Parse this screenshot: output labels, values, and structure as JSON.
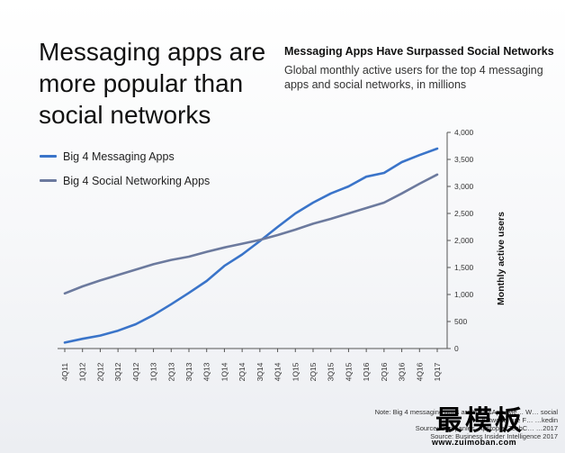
{
  "headline": "Messaging apps are more popular than social networks",
  "chart_data": {
    "type": "line",
    "title": "Messaging Apps Have Surpassed Social Networks",
    "subtitle": "Global monthly active users for the top 4 messaging apps and social networks, in millions",
    "ylabel": "Monthly active users",
    "xlabel": "",
    "ylim": [
      0,
      4000
    ],
    "yticks": [
      0,
      500,
      1000,
      1500,
      2000,
      2500,
      3000,
      3500,
      4000
    ],
    "ytick_labels": [
      "0",
      "500",
      "1,000",
      "1,500",
      "2,000",
      "2,500",
      "3,000",
      "3,500",
      "4,000"
    ],
    "grid": false,
    "legend_position": "top-left",
    "x": [
      "4Q11",
      "1Q12",
      "2Q12",
      "3Q12",
      "4Q12",
      "1Q13",
      "2Q13",
      "3Q13",
      "4Q13",
      "1Q14",
      "2Q14",
      "3Q14",
      "4Q14",
      "1Q15",
      "2Q15",
      "3Q15",
      "4Q15",
      "1Q16",
      "2Q16",
      "3Q16",
      "4Q16",
      "1Q17"
    ],
    "series": [
      {
        "name": "Big 4 Messaging Apps",
        "color": "#3a74c9",
        "values": [
          110,
          180,
          240,
          330,
          450,
          620,
          820,
          1030,
          1250,
          1530,
          1740,
          1990,
          2250,
          2500,
          2700,
          2870,
          3000,
          3180,
          3250,
          3450,
          3580,
          3700
        ]
      },
      {
        "name": "Big 4 Social Networking Apps",
        "color": "#6c7a9e",
        "values": [
          1020,
          1150,
          1260,
          1360,
          1460,
          1560,
          1640,
          1700,
          1790,
          1870,
          1940,
          2010,
          2100,
          2200,
          2310,
          2400,
          2500,
          2600,
          2700,
          2870,
          3050,
          3220
        ]
      }
    ]
  },
  "note": {
    "line1": "Note: Big 4 messaging apps are WhatsApp, Me…  W…  social",
    "line2": "networks are F…  …kedin",
    "line3": "Source: Companies, Apptopia, TechC…  …2017",
    "line4": "Source: Business Insider Intelligence 2017"
  },
  "watermark": {
    "text": "最模板",
    "url": "www.zuimoban.com"
  }
}
